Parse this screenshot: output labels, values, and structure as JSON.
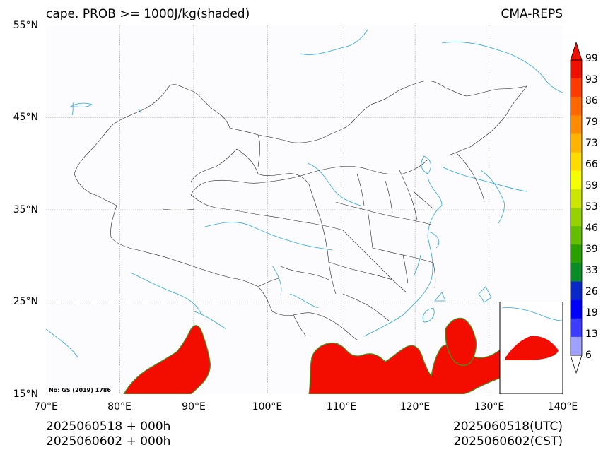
{
  "title_left": "cape. PROB >= 1000J/kg(shaded)",
  "title_right": "CMA-REPS",
  "footer": {
    "left_line1": "2025060518  +  000h",
    "left_line2": "2025060602  +  000h",
    "right_line1": "2025060518(UTC)",
    "right_line2": "2025060602(CST)"
  },
  "gs_note": "No: GS (2019) 1786",
  "lat_ticks": [
    "55°N",
    "45°N",
    "35°N",
    "25°N",
    "15°N"
  ],
  "lon_ticks": [
    "70°E",
    "80°E",
    "90°E",
    "100°E",
    "110°E",
    "120°E",
    "130°E",
    "140°E"
  ],
  "map": {
    "lon_range": [
      70,
      140
    ],
    "lat_range": [
      15,
      55
    ],
    "shade_color": "#f20d00",
    "coast_color": "#2aa8e0",
    "border_color": "#222222"
  },
  "colorbar": {
    "levels": [
      "99",
      "93",
      "86",
      "79",
      "73",
      "66",
      "59",
      "53",
      "46",
      "39",
      "33",
      "26",
      "19",
      "13",
      "6"
    ],
    "colors": [
      "#ee1100",
      "#ff3c00",
      "#ff6800",
      "#ff8c00",
      "#ffb400",
      "#ffdc00",
      "#f5ff00",
      "#cde600",
      "#96d200",
      "#64be00",
      "#2aa000",
      "#0a8c28",
      "#0a28c8",
      "#0000ff",
      "#3c3cff",
      "#a0a0ff"
    ]
  }
}
